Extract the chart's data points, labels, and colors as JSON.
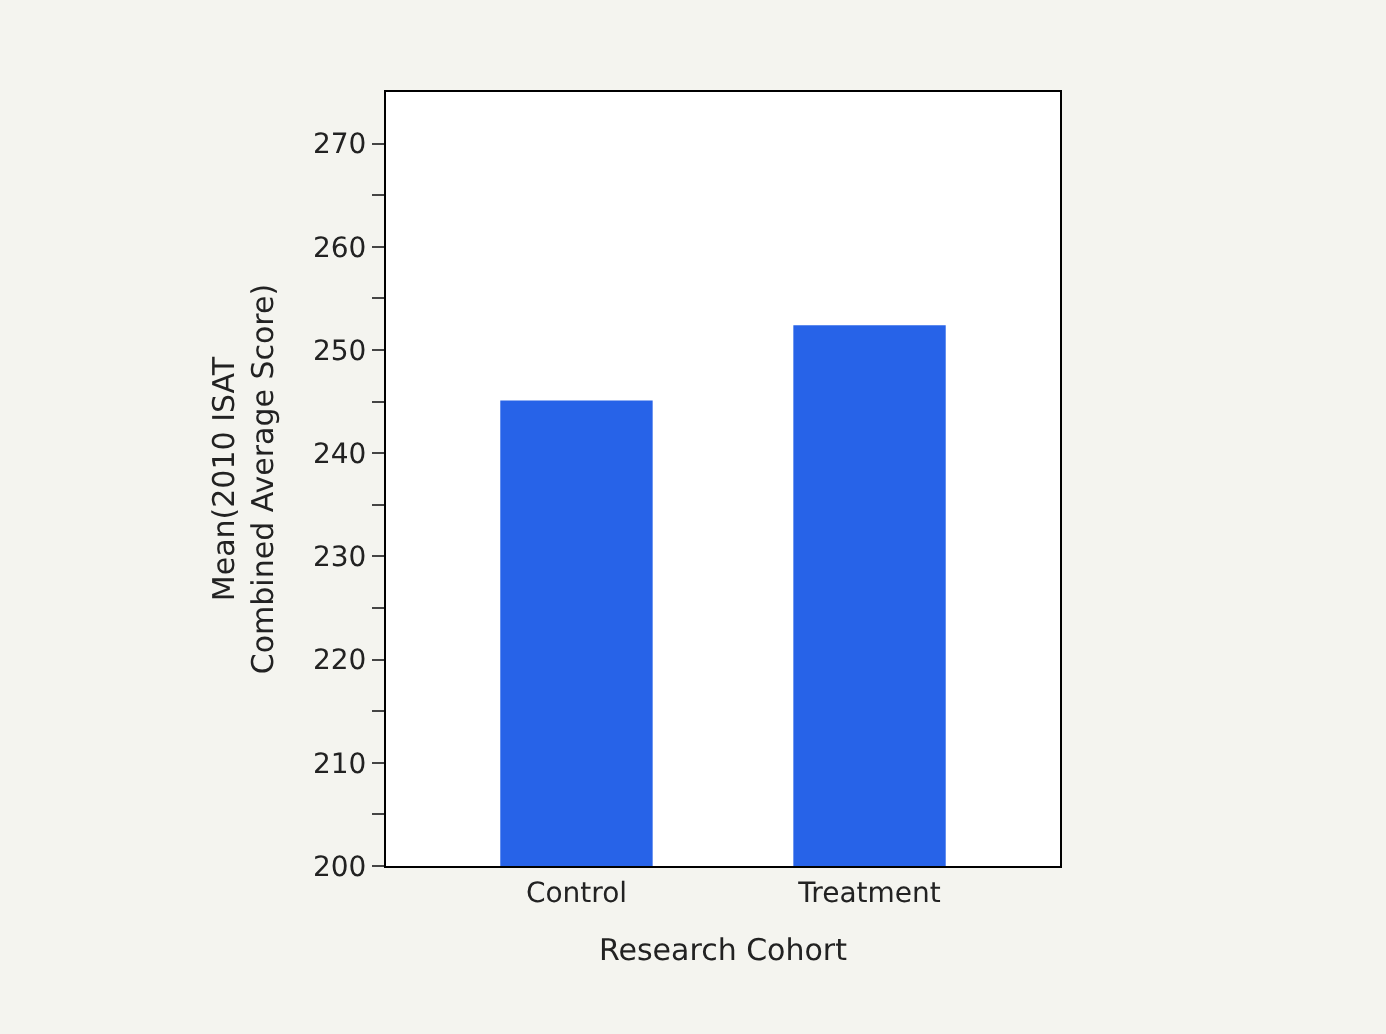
{
  "chart_data": {
    "type": "bar",
    "categories": [
      "Control",
      "Treatment"
    ],
    "values": [
      245.1,
      252.4
    ],
    "color": "#2763e8",
    "xlabel": "Research Cohort",
    "ylabel": "Mean(2010 ISAT\nCombined Average Score)",
    "ylim": [
      200,
      275
    ],
    "yticks": [
      200,
      {
        "value": 205,
        "label": null
      },
      210,
      {
        "value": 215,
        "label": null
      },
      220,
      {
        "value": 225,
        "label": null
      },
      230,
      {
        "value": 235,
        "label": null
      },
      240,
      {
        "value": 245,
        "label": null
      },
      250,
      {
        "value": 255,
        "label": null
      },
      260,
      {
        "value": 265,
        "label": null
      },
      270
    ],
    "grid": false
  }
}
